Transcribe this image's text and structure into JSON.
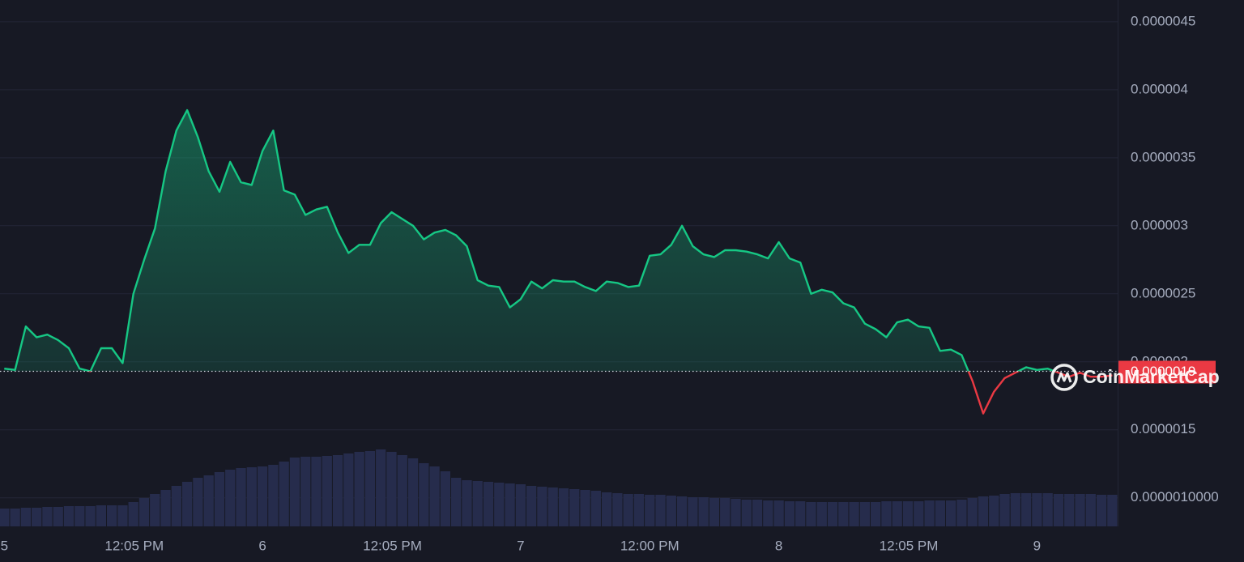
{
  "chart_data": {
    "type": "line",
    "x": [
      0,
      1,
      2,
      3,
      4,
      5,
      6,
      7,
      8,
      9,
      10,
      11,
      12,
      13,
      14,
      15,
      16,
      17,
      18,
      19,
      20,
      21,
      22,
      23,
      24,
      25,
      26,
      27,
      28,
      29,
      30,
      31,
      32,
      33,
      34,
      35,
      36,
      37,
      38,
      39,
      40,
      41,
      42,
      43,
      44,
      45,
      46,
      47,
      48,
      49,
      50,
      51,
      52,
      53,
      54,
      55,
      56,
      57,
      58,
      59,
      60,
      61,
      62,
      63,
      64,
      65,
      66,
      67,
      68,
      69,
      70,
      71,
      72,
      73,
      74,
      75,
      76,
      77,
      78,
      79,
      80,
      81,
      82,
      83,
      84,
      85,
      86,
      87,
      88,
      89,
      90,
      91,
      92,
      93,
      94,
      95,
      96,
      97,
      98,
      99,
      100,
      101,
      102,
      103
    ],
    "values": [
      1.95e-06,
      1.94e-06,
      2.26e-06,
      2.18e-06,
      2.2e-06,
      2.16e-06,
      2.1e-06,
      1.95e-06,
      1.93e-06,
      2.1e-06,
      2.1e-06,
      1.99e-06,
      2.5e-06,
      2.75e-06,
      2.98e-06,
      3.4e-06,
      3.7e-06,
      3.85e-06,
      3.65e-06,
      3.4e-06,
      3.25e-06,
      3.47e-06,
      3.32e-06,
      3.3e-06,
      3.55e-06,
      3.7e-06,
      3.26e-06,
      3.23e-06,
      3.08e-06,
      3.12e-06,
      3.14e-06,
      2.95e-06,
      2.8e-06,
      2.86e-06,
      2.86e-06,
      3.02e-06,
      3.1e-06,
      3.05e-06,
      3e-06,
      2.9e-06,
      2.95e-06,
      2.97e-06,
      2.93e-06,
      2.85e-06,
      2.6e-06,
      2.56e-06,
      2.55e-06,
      2.4e-06,
      2.46e-06,
      2.59e-06,
      2.54e-06,
      2.6e-06,
      2.59e-06,
      2.59e-06,
      2.55e-06,
      2.52e-06,
      2.59e-06,
      2.58e-06,
      2.55e-06,
      2.56e-06,
      2.78e-06,
      2.79e-06,
      2.86e-06,
      3e-06,
      2.85e-06,
      2.79e-06,
      2.77e-06,
      2.82e-06,
      2.82e-06,
      2.81e-06,
      2.79e-06,
      2.76e-06,
      2.88e-06,
      2.76e-06,
      2.73e-06,
      2.5e-06,
      2.53e-06,
      2.51e-06,
      2.43e-06,
      2.4e-06,
      2.28e-06,
      2.24e-06,
      2.18e-06,
      2.29e-06,
      2.31e-06,
      2.26e-06,
      2.25e-06,
      2.08e-06,
      2.09e-06,
      2.05e-06,
      1.86e-06,
      1.62e-06,
      1.78e-06,
      1.88e-06,
      1.92e-06,
      1.96e-06,
      1.94e-06,
      1.95e-06,
      1.92e-06,
      1.89e-06,
      1.92e-06,
      1.89e-06,
      1.89e-06,
      1.9e-06
    ],
    "volume": [
      22,
      22,
      23,
      23,
      24,
      24,
      25,
      25,
      25,
      26,
      26,
      26,
      30,
      35,
      40,
      45,
      50,
      55,
      60,
      63,
      67,
      70,
      72,
      73,
      74,
      76,
      80,
      85,
      86,
      86,
      87,
      88,
      90,
      92,
      93,
      95,
      92,
      88,
      84,
      78,
      74,
      68,
      60,
      57,
      56,
      55,
      54,
      53,
      52,
      50,
      49,
      48,
      47,
      46,
      45,
      44,
      42,
      41,
      40,
      40,
      39,
      39,
      38,
      37,
      36,
      36,
      35,
      35,
      34,
      33,
      33,
      32,
      32,
      31,
      31,
      30,
      30,
      30,
      30,
      30,
      30,
      30,
      31,
      31,
      31,
      31,
      32,
      32,
      32,
      33,
      35,
      37,
      38,
      40,
      41,
      41,
      41,
      41,
      40,
      40,
      40,
      40,
      39,
      39
    ],
    "color": "#16c784",
    "down_color": "#ea3943",
    "volume_color": "#262c4c",
    "reference": {
      "value": 1.93e-06,
      "label": "0.0000019"
    },
    "watermark": "CoinMarketCap",
    "xlim": [
      -0.4,
      103.5
    ],
    "xticks": [
      {
        "value": 0,
        "label": "5"
      },
      {
        "value": 12.08,
        "label": "12:05 PM"
      },
      {
        "value": 24,
        "label": "6"
      },
      {
        "value": 36.08,
        "label": "12:05 PM"
      },
      {
        "value": 48,
        "label": "7"
      },
      {
        "value": 60,
        "label": "12:00 PM"
      },
      {
        "value": 72,
        "label": "8"
      },
      {
        "value": 84.08,
        "label": "12:05 PM"
      },
      {
        "value": 96,
        "label": "9"
      }
    ],
    "ylim": [
      7.9e-07,
      4.66e-06
    ],
    "yticks": [
      4.5e-06,
      4e-06,
      3.5e-06,
      3e-06,
      2.5e-06,
      2e-06,
      1.5e-06,
      {
        "value": 1e-06,
        "label": "0.0000010000"
      }
    ],
    "grid": true
  }
}
